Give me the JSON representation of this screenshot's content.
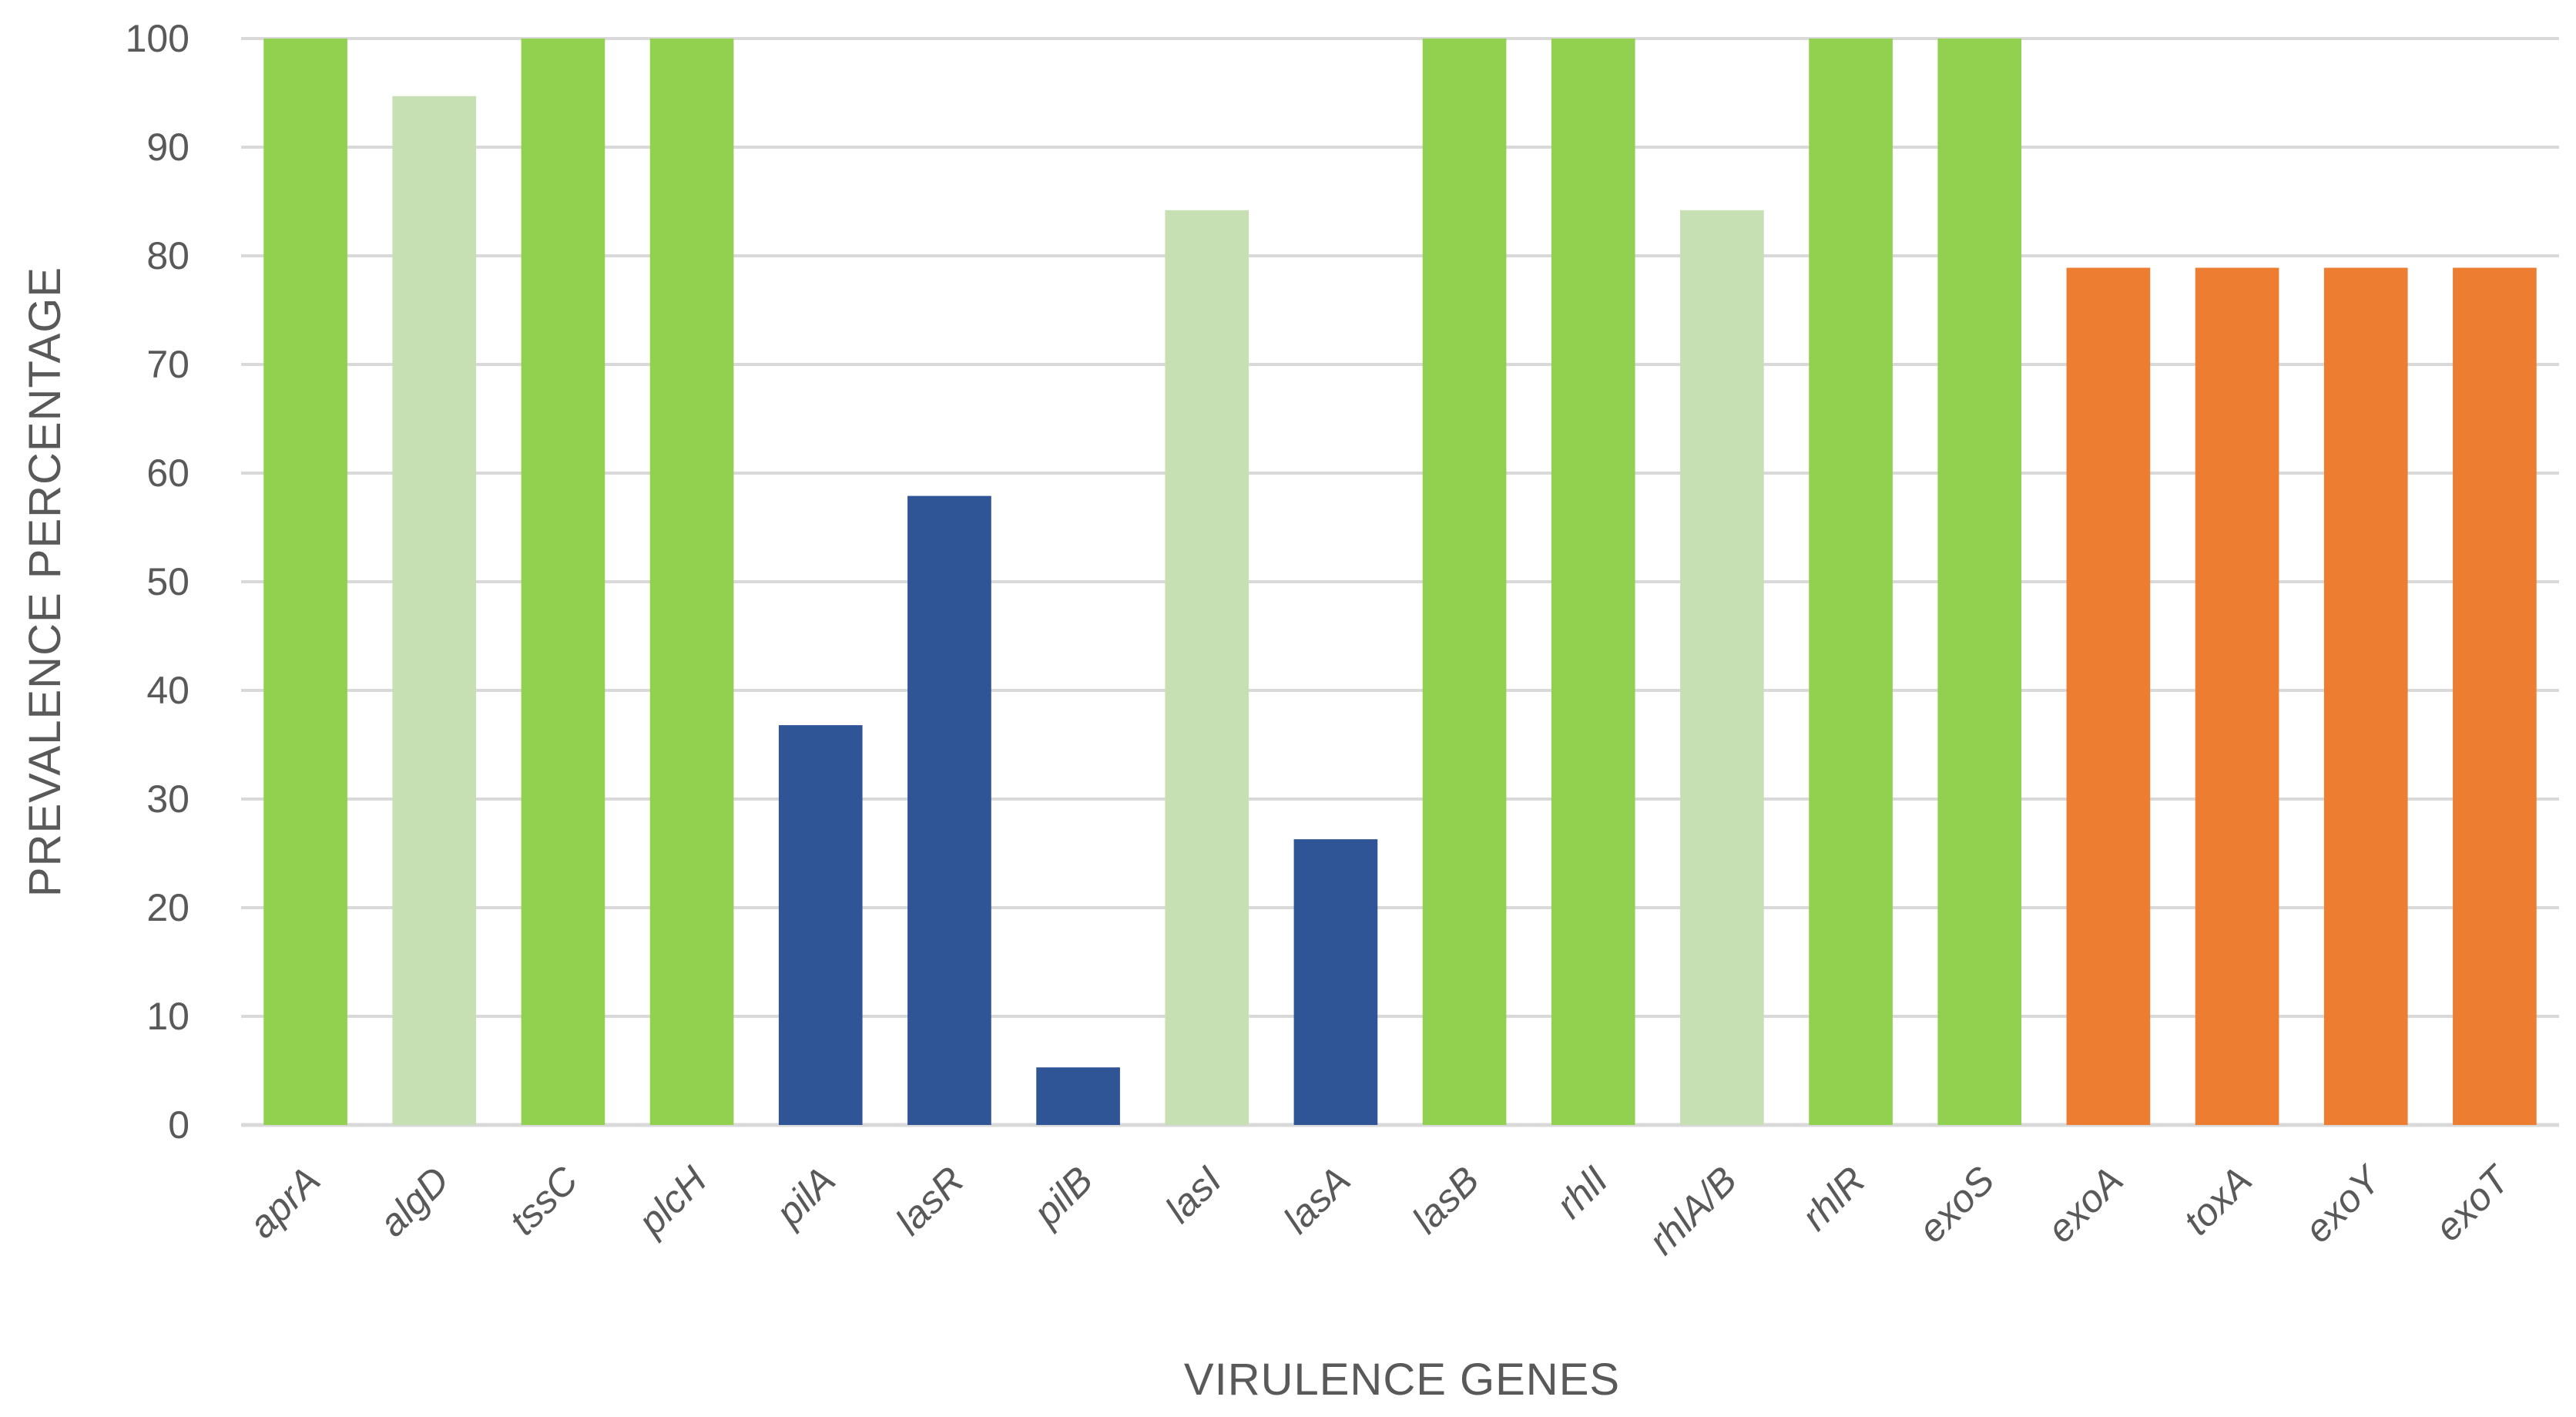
{
  "chart_data": {
    "type": "bar",
    "title": "",
    "xlabel": "VIRULENCE GENES",
    "ylabel": "PREVALENCE PERCENTAGE",
    "ylim": [
      0,
      100
    ],
    "yticks": [
      0,
      10,
      20,
      30,
      40,
      50,
      60,
      70,
      80,
      90,
      100
    ],
    "grid": true,
    "legend": "none",
    "categories": [
      "aprA",
      "algD",
      "tssC",
      "plcH",
      "pilA",
      "lasR",
      "pilB",
      "lasI",
      "lasA",
      "lasB",
      "rhlI",
      "rhlA/B",
      "rhlR",
      "exoS",
      "exoA",
      "toxA",
      "exoY",
      "exoT"
    ],
    "values": [
      100,
      94.7,
      100,
      100,
      36.8,
      57.9,
      5.3,
      84.2,
      26.3,
      100,
      100,
      84.2,
      100,
      100,
      78.9,
      78.9,
      78.9,
      78.9
    ],
    "bar_colors": [
      "#92d050",
      "#c6e0b4",
      "#92d050",
      "#92d050",
      "#2f5597",
      "#2f5597",
      "#2f5597",
      "#c6e0b4",
      "#2f5597",
      "#92d050",
      "#92d050",
      "#c6e0b4",
      "#92d050",
      "#92d050",
      "#ed7d31",
      "#ed7d31",
      "#ed7d31",
      "#ed7d31"
    ]
  }
}
